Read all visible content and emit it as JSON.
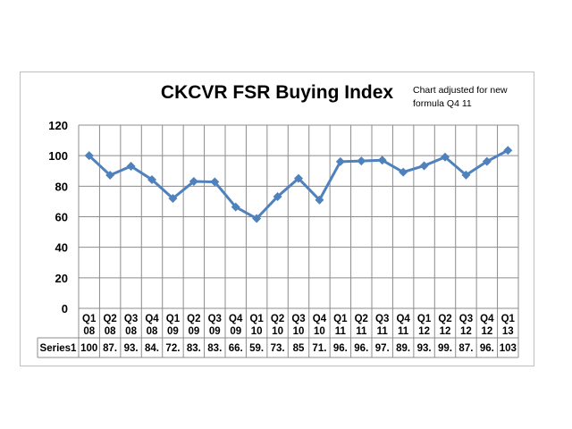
{
  "chart_data": {
    "type": "line",
    "title": "CKCVR FSR Buying Index",
    "annotation": "Chart adjusted for new formula  Q4 11",
    "categories": [
      [
        "Q1",
        "08"
      ],
      [
        "Q2",
        "08"
      ],
      [
        "Q3",
        "08"
      ],
      [
        "Q4",
        "08"
      ],
      [
        "Q1",
        "09"
      ],
      [
        "Q2",
        "09"
      ],
      [
        "Q3",
        "09"
      ],
      [
        "Q4",
        "09"
      ],
      [
        "Q1",
        "10"
      ],
      [
        "Q2",
        "10"
      ],
      [
        "Q3",
        "10"
      ],
      [
        "Q4",
        "10"
      ],
      [
        "Q1",
        "11"
      ],
      [
        "Q2",
        "11"
      ],
      [
        "Q3",
        "11"
      ],
      [
        "Q4",
        "11"
      ],
      [
        "Q1",
        "12"
      ],
      [
        "Q2",
        "12"
      ],
      [
        "Q3",
        "12"
      ],
      [
        "Q4",
        "12"
      ],
      [
        "Q1",
        "13"
      ]
    ],
    "series": [
      {
        "name": "Series1",
        "values": [
          100,
          87.2,
          93.1,
          84.3,
          72.0,
          83.1,
          82.8,
          66.4,
          58.8,
          73.2,
          85.1,
          71.0,
          96.1,
          96.5,
          97.0,
          89.2,
          93.4,
          99.1,
          87.3,
          96.2,
          103.5
        ],
        "table_labels": [
          "100",
          "87.",
          "93.",
          "84.",
          "72.",
          "83.",
          "83.",
          "66.",
          "59.",
          "73.",
          "85",
          "71.",
          "96.",
          "96.",
          "97.",
          "89.",
          "93.",
          "99.",
          "87.",
          "96.",
          "103"
        ],
        "color": "#4f81bd",
        "marker": "diamond"
      }
    ],
    "yticks": [
      "0",
      "20",
      "40",
      "60",
      "80",
      "100",
      "120"
    ],
    "ylim": [
      0,
      120
    ],
    "grid": true,
    "data_table": true
  }
}
